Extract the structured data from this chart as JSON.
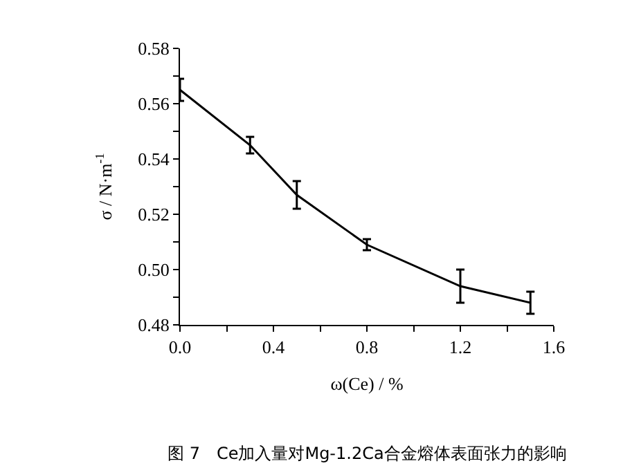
{
  "chart_data": {
    "type": "line",
    "xlabel": "ω(Ce) / %",
    "ylabel": "σ / N·m$^{-1}$",
    "annotations": [
      "图 7　Ce加入量对Mg-1.2Ca合金熔体表面张力的影响"
    ],
    "x": [
      0,
      0.3,
      0.5,
      0.8,
      1.2,
      1.5
    ],
    "series": [
      {
        "color": "#000000",
        "values": [
          0.565,
          0.545,
          0.527,
          0.509,
          0.494,
          0.488
        ],
        "errors": [
          0.004,
          0.003,
          0.005,
          0.002,
          0.006,
          0.004
        ]
      }
    ],
    "xlim": [
      0,
      1.6
    ],
    "xticks": [
      {
        "value": 0,
        "label": "0.0"
      },
      {
        "value": 0.2,
        "label": null
      },
      {
        "value": 0.4,
        "label": "0.4"
      },
      {
        "value": 0.6,
        "label": null
      },
      {
        "value": 0.8,
        "label": "0.8"
      },
      {
        "value": 1.0,
        "label": null
      },
      {
        "value": 1.2,
        "label": "1.2"
      },
      {
        "value": 1.4,
        "label": null
      },
      {
        "value": 1.6,
        "label": "1.6"
      }
    ],
    "ylim": [
      0.48,
      0.58
    ],
    "yticks": [
      {
        "value": 0.48,
        "label": "0.48"
      },
      {
        "value": 0.49,
        "label": null
      },
      {
        "value": 0.5,
        "label": "0.50"
      },
      {
        "value": 0.51,
        "label": null
      },
      {
        "value": 0.52,
        "label": "0.52"
      },
      {
        "value": 0.53,
        "label": null
      },
      {
        "value": 0.54,
        "label": "0.54"
      },
      {
        "value": 0.55,
        "label": null
      },
      {
        "value": 0.56,
        "label": "0.56"
      },
      {
        "value": 0.57,
        "label": null
      },
      {
        "value": 0.58,
        "label": "0.58"
      }
    ],
    "marker": "none",
    "line_style": "solid"
  }
}
